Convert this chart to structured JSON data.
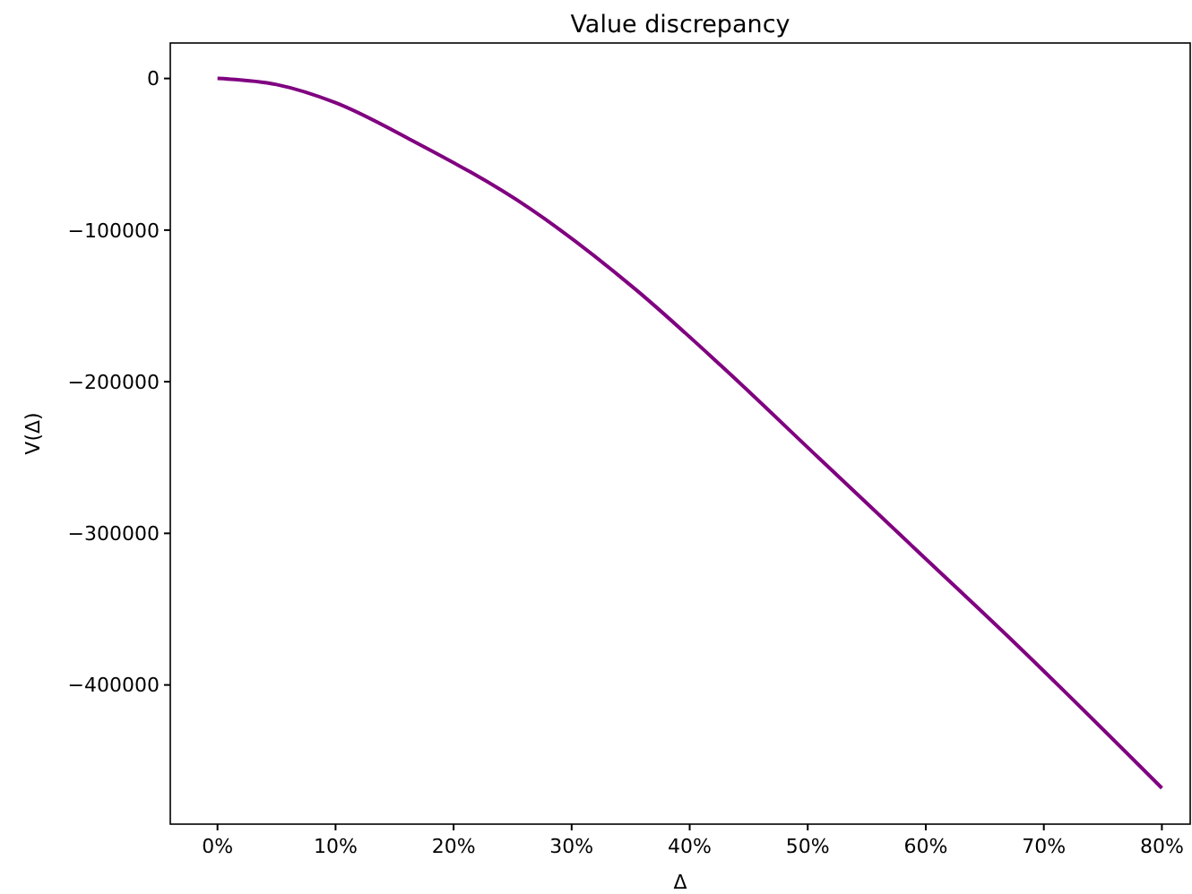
{
  "chart_data": {
    "type": "line",
    "title": "Value discrepancy",
    "xlabel": "Δ",
    "ylabel": "V(Δ)",
    "series": [
      {
        "color": "#800080",
        "x": [
          0,
          5,
          10,
          16.5,
          26.5,
          35.4,
          42.6,
          50.9,
          59.2,
          67.5,
          80
        ],
        "values": [
          0,
          -4000,
          -16000,
          -41000,
          -86000,
          -139000,
          -189000,
          -250000,
          -311000,
          -372000,
          -468000
        ]
      }
    ],
    "xlim": [
      -4,
      82.4
    ],
    "ylim": [
      -491800,
      23400
    ],
    "xticks": [
      {
        "value": 0,
        "label": "0%"
      },
      {
        "value": 10,
        "label": "10%"
      },
      {
        "value": 20,
        "label": "20%"
      },
      {
        "value": 30,
        "label": "30%"
      },
      {
        "value": 40,
        "label": "40%"
      },
      {
        "value": 50,
        "label": "50%"
      },
      {
        "value": 60,
        "label": "60%"
      },
      {
        "value": 70,
        "label": "70%"
      },
      {
        "value": 80,
        "label": "80%"
      }
    ],
    "yticks": [
      {
        "value": 0,
        "label": "0"
      },
      {
        "value": -100000,
        "label": "−100000"
      },
      {
        "value": -200000,
        "label": "−200000"
      },
      {
        "value": -300000,
        "label": "−300000"
      },
      {
        "value": -400000,
        "label": "−400000"
      }
    ]
  }
}
